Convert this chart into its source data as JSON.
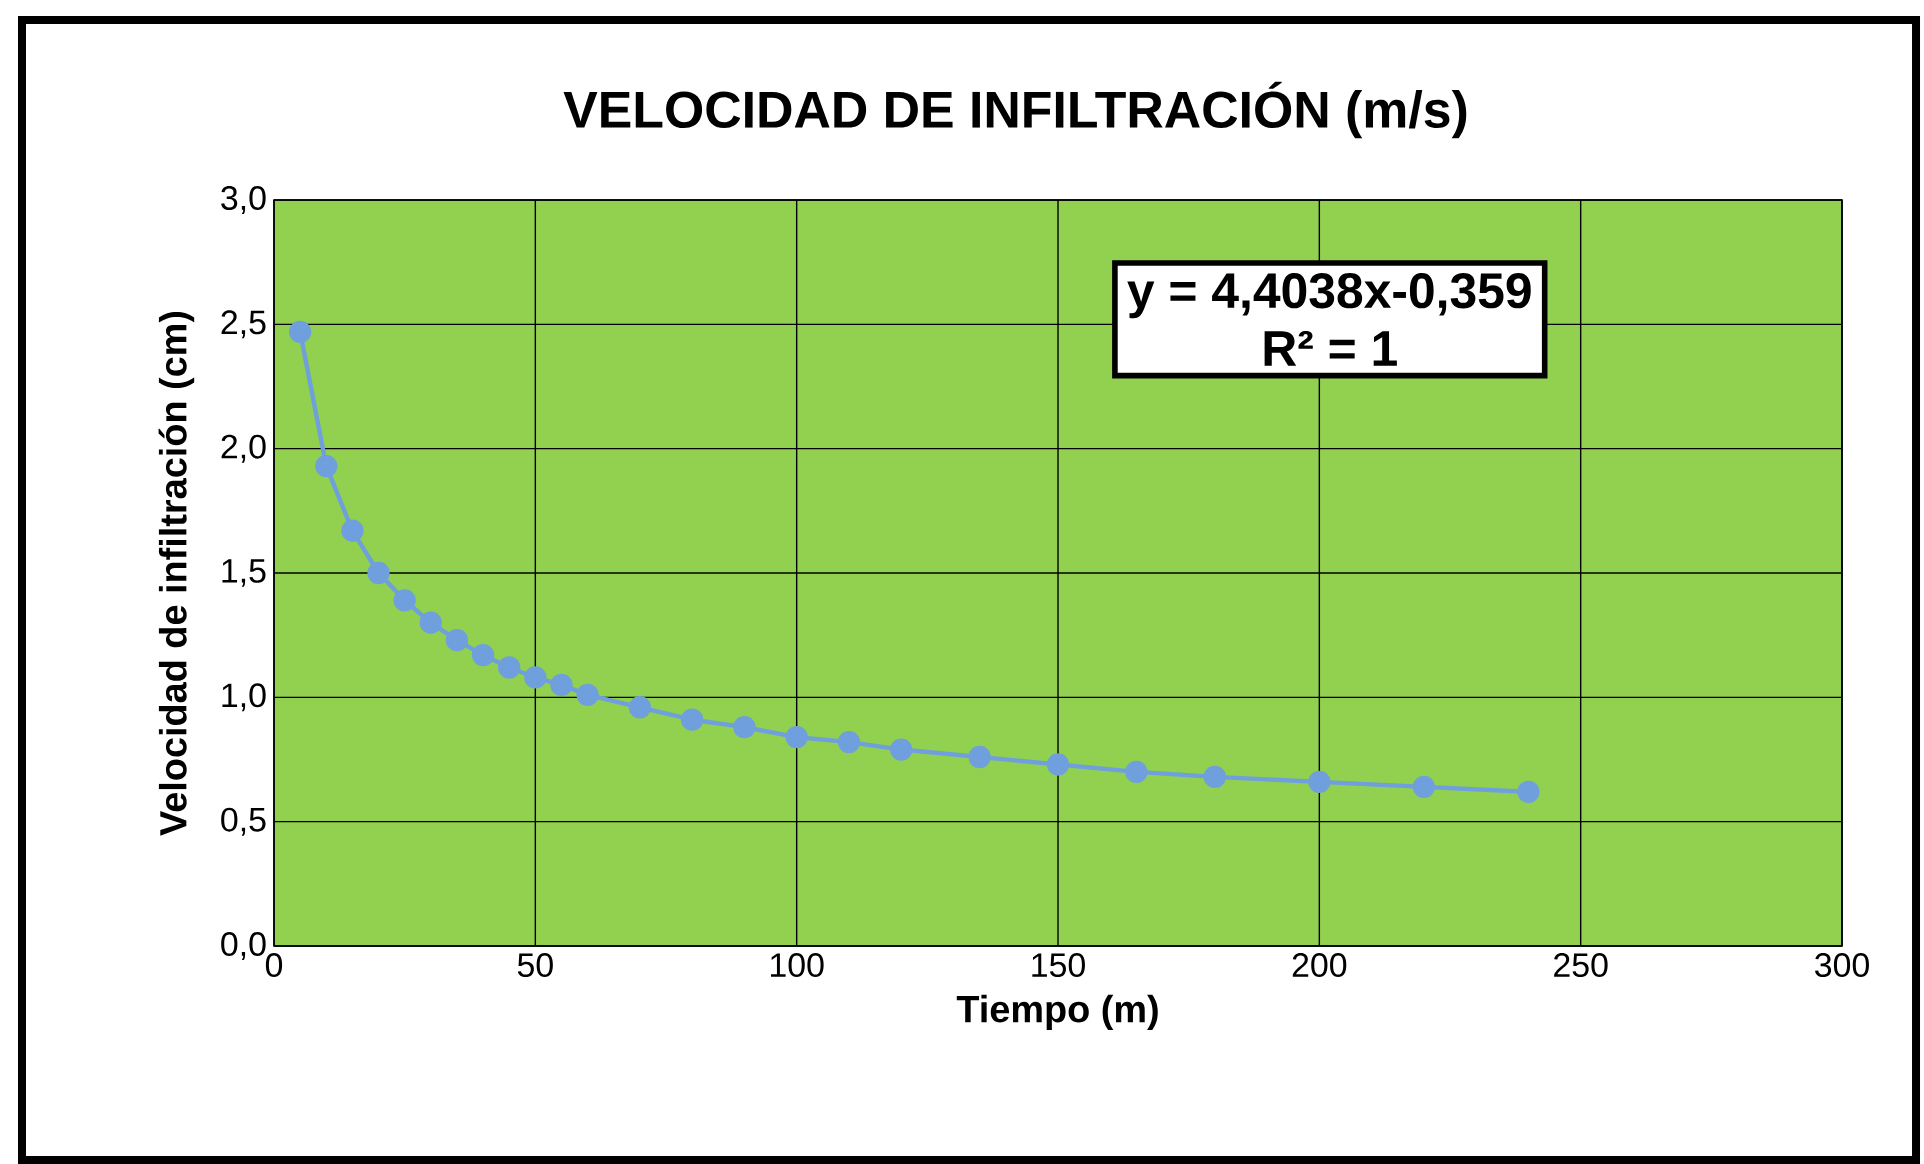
{
  "chart_data": {
    "type": "line",
    "title": "VELOCIDAD DE INFILTRACIÓN    (m/s)",
    "xlabel": "Tiempo (m)",
    "ylabel": "Velocidad de infiltración (cm)",
    "annotations": [
      "y = 4,4038x-0,359",
      "R² = 1"
    ],
    "x": [
      5,
      10,
      15,
      20,
      25,
      30,
      35,
      40,
      45,
      50,
      55,
      60,
      70,
      80,
      90,
      100,
      110,
      120,
      135,
      150,
      165,
      180,
      200,
      220,
      240
    ],
    "series": [
      {
        "color": "#6f9fdc",
        "values": [
          2.47,
          1.93,
          1.67,
          1.5,
          1.39,
          1.3,
          1.23,
          1.17,
          1.12,
          1.08,
          1.05,
          1.01,
          0.96,
          0.91,
          0.88,
          0.84,
          0.82,
          0.79,
          0.76,
          0.73,
          0.7,
          0.68,
          0.66,
          0.64,
          0.62
        ]
      }
    ],
    "xlim": [
      0,
      300
    ],
    "xticks": [
      0,
      50,
      100,
      150,
      200,
      250,
      300
    ],
    "ylim": [
      0,
      3
    ],
    "yticks": [
      {
        "value": 0,
        "label": "0,0"
      },
      {
        "value": 0.5,
        "label": "0,5"
      },
      {
        "value": 1,
        "label": "1,0"
      },
      {
        "value": 1.5,
        "label": "1,5"
      },
      {
        "value": 2,
        "label": "2,0"
      },
      {
        "value": 2.5,
        "label": "2,5"
      },
      {
        "value": 3,
        "label": "3,0"
      }
    ],
    "grid": true,
    "marker": "circle",
    "line_style": "solid"
  }
}
